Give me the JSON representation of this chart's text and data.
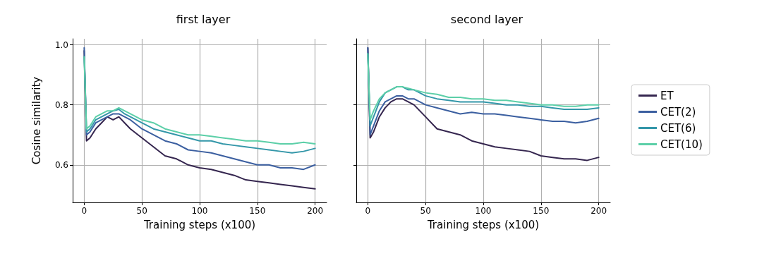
{
  "chart_data": [
    {
      "type": "line",
      "title": "first layer",
      "xlabel": "Training steps (x100)",
      "ylabel": "Cosine similarity",
      "x": [
        0,
        2,
        5,
        10,
        15,
        20,
        25,
        30,
        35,
        40,
        50,
        60,
        70,
        80,
        90,
        100,
        110,
        120,
        130,
        140,
        150,
        160,
        170,
        180,
        190,
        200
      ],
      "xlim": [
        -10,
        210
      ],
      "xticks": [
        0,
        50,
        100,
        150,
        200
      ],
      "ylim": [
        0.475,
        1.02
      ],
      "yticks": [
        {
          "value": 0.6,
          "label": "0.6"
        },
        {
          "value": 0.8,
          "label": "0.8"
        },
        {
          "value": 1,
          "label": "1.0"
        }
      ],
      "grid": true,
      "legend": false,
      "line_style": "solid",
      "marker": "none",
      "series": [
        {
          "color": "#35264f",
          "values": [
            0.98,
            0.68,
            0.69,
            0.72,
            0.74,
            0.76,
            0.75,
            0.76,
            0.74,
            0.72,
            0.69,
            0.66,
            0.63,
            0.62,
            0.6,
            0.59,
            0.585,
            0.575,
            0.565,
            0.55,
            0.545,
            0.54,
            0.535,
            0.53,
            0.525,
            0.52
          ]
        },
        {
          "color": "#3b5fa0",
          "values": [
            0.99,
            0.7,
            0.71,
            0.74,
            0.75,
            0.76,
            0.77,
            0.77,
            0.76,
            0.75,
            0.72,
            0.7,
            0.68,
            0.67,
            0.65,
            0.645,
            0.64,
            0.63,
            0.62,
            0.61,
            0.6,
            0.6,
            0.59,
            0.59,
            0.585,
            0.6
          ]
        },
        {
          "color": "#3497a9",
          "values": [
            0.96,
            0.71,
            0.72,
            0.75,
            0.76,
            0.77,
            0.78,
            0.785,
            0.77,
            0.76,
            0.74,
            0.72,
            0.71,
            0.7,
            0.69,
            0.68,
            0.68,
            0.67,
            0.665,
            0.66,
            0.655,
            0.65,
            0.645,
            0.64,
            0.645,
            0.655
          ]
        },
        {
          "color": "#5ccfa8",
          "values": [
            0.96,
            0.72,
            0.73,
            0.76,
            0.77,
            0.78,
            0.78,
            0.79,
            0.78,
            0.77,
            0.75,
            0.74,
            0.72,
            0.71,
            0.7,
            0.7,
            0.695,
            0.69,
            0.685,
            0.68,
            0.68,
            0.675,
            0.67,
            0.67,
            0.675,
            0.67
          ]
        }
      ]
    },
    {
      "type": "line",
      "title": "second layer",
      "xlabel": "Training steps (x100)",
      "x": [
        0,
        2,
        5,
        10,
        15,
        20,
        25,
        30,
        35,
        40,
        50,
        60,
        70,
        80,
        90,
        100,
        110,
        120,
        130,
        140,
        150,
        160,
        170,
        180,
        190,
        200
      ],
      "xlim": [
        -10,
        210
      ],
      "xticks": [
        0,
        50,
        100,
        150,
        200
      ],
      "ylim": [
        0.475,
        1.02
      ],
      "yticks": [
        {
          "value": 0.6,
          "label": null
        },
        {
          "value": 0.8,
          "label": null
        },
        {
          "value": 1,
          "label": null
        }
      ],
      "tick_labels": "x",
      "grid": true,
      "legend": "right",
      "line_style": "solid",
      "marker": "none",
      "series": [
        {
          "name": "ET",
          "color": "#35264f",
          "values": [
            0.99,
            0.69,
            0.71,
            0.76,
            0.79,
            0.81,
            0.82,
            0.82,
            0.81,
            0.8,
            0.76,
            0.72,
            0.71,
            0.7,
            0.68,
            0.67,
            0.66,
            0.655,
            0.65,
            0.645,
            0.63,
            0.625,
            0.62,
            0.62,
            0.615,
            0.625
          ]
        },
        {
          "name": "CET(2)",
          "color": "#3b5fa0",
          "values": [
            0.99,
            0.7,
            0.73,
            0.78,
            0.81,
            0.82,
            0.83,
            0.83,
            0.82,
            0.82,
            0.8,
            0.79,
            0.78,
            0.77,
            0.775,
            0.77,
            0.77,
            0.765,
            0.76,
            0.755,
            0.75,
            0.745,
            0.745,
            0.74,
            0.745,
            0.755
          ]
        },
        {
          "name": "CET(6)",
          "color": "#3497a9",
          "values": [
            0.97,
            0.73,
            0.76,
            0.81,
            0.84,
            0.85,
            0.86,
            0.86,
            0.85,
            0.85,
            0.83,
            0.82,
            0.815,
            0.81,
            0.81,
            0.81,
            0.805,
            0.8,
            0.8,
            0.795,
            0.795,
            0.79,
            0.785,
            0.785,
            0.785,
            0.79
          ]
        },
        {
          "name": "CET(10)",
          "color": "#5ccfa8",
          "values": [
            0.97,
            0.75,
            0.78,
            0.82,
            0.84,
            0.85,
            0.86,
            0.86,
            0.855,
            0.85,
            0.84,
            0.835,
            0.825,
            0.825,
            0.82,
            0.82,
            0.815,
            0.815,
            0.81,
            0.805,
            0.8,
            0.8,
            0.795,
            0.795,
            0.8,
            0.8
          ]
        }
      ]
    }
  ]
}
